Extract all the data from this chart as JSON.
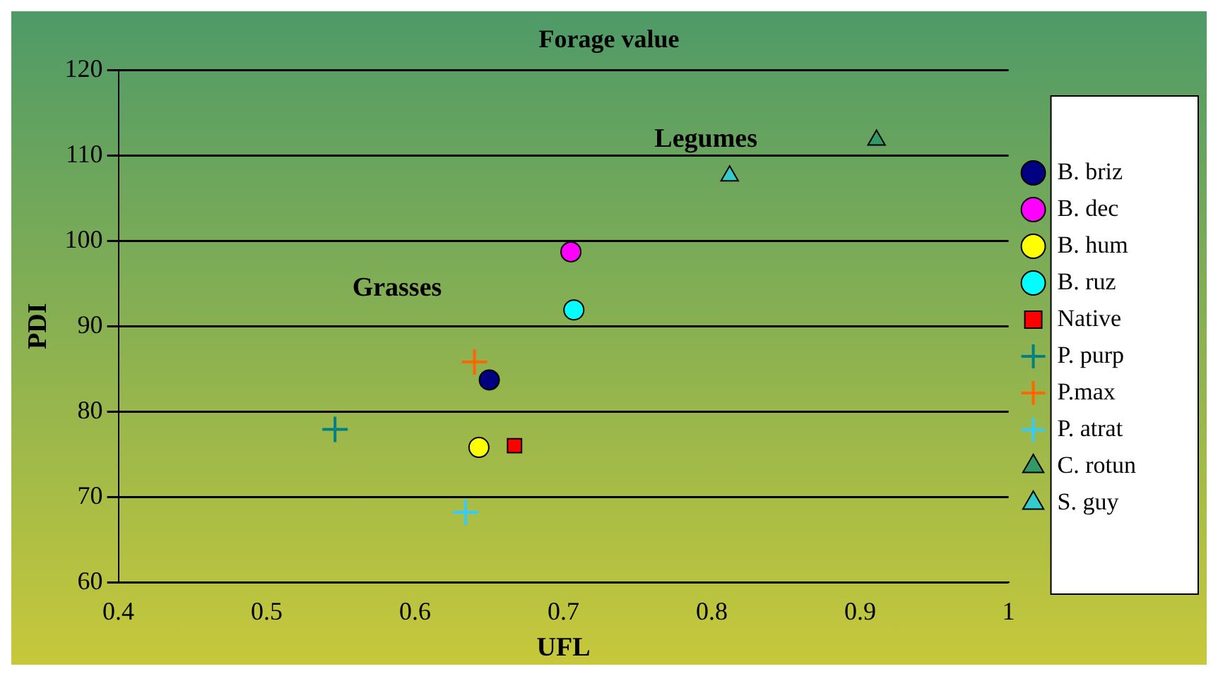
{
  "chart_data": {
    "type": "scatter",
    "title": "Forage value",
    "xlabel": "UFL",
    "ylabel": "PDI",
    "xlim": [
      0.4,
      1
    ],
    "xticks": [
      0.4,
      0.5,
      0.6,
      0.7,
      0.8,
      0.9,
      1
    ],
    "ylim": [
      60,
      120
    ],
    "yticks": [
      60,
      70,
      80,
      90,
      100,
      110,
      120
    ],
    "grid": "y",
    "legend": "right",
    "annotations": [
      "Legumes",
      "Grasses"
    ],
    "series": [
      {
        "name": "B. briz",
        "color": "#000080",
        "marker": "circle",
        "x": [
          0.65
        ],
        "values": [
          83.7
        ]
      },
      {
        "name": "B. dec",
        "color": "#ff00ff",
        "marker": "circle",
        "x": [
          0.705
        ],
        "values": [
          98.7
        ]
      },
      {
        "name": "B. hum",
        "color": "#ffff00",
        "marker": "circle",
        "x": [
          0.643
        ],
        "values": [
          75.8
        ]
      },
      {
        "name": "B. ruz",
        "color": "#00ffff",
        "marker": "circle",
        "x": [
          0.707
        ],
        "values": [
          91.9
        ]
      },
      {
        "name": "Native",
        "color": "#ff0000",
        "marker": "square",
        "x": [
          0.667
        ],
        "values": [
          76
        ]
      },
      {
        "name": "P. purp",
        "color": "#008080",
        "marker": "cross",
        "x": [
          0.546
        ],
        "values": [
          77.9
        ]
      },
      {
        "name": "P.max",
        "color": "#ff6600",
        "marker": "cross",
        "x": [
          0.64
        ],
        "values": [
          85.8
        ]
      },
      {
        "name": "P. atrat",
        "color": "#33ccff",
        "marker": "cross",
        "x": [
          0.634
        ],
        "values": [
          68.2
        ]
      },
      {
        "name": "C. rotun",
        "color": "#339966",
        "marker": "triangle",
        "x": [
          0.911
        ],
        "values": [
          111.8
        ]
      },
      {
        "name": "S. guy",
        "color": "#33cccc",
        "marker": "triangle",
        "x": [
          0.812
        ],
        "values": [
          107.6
        ]
      }
    ]
  }
}
